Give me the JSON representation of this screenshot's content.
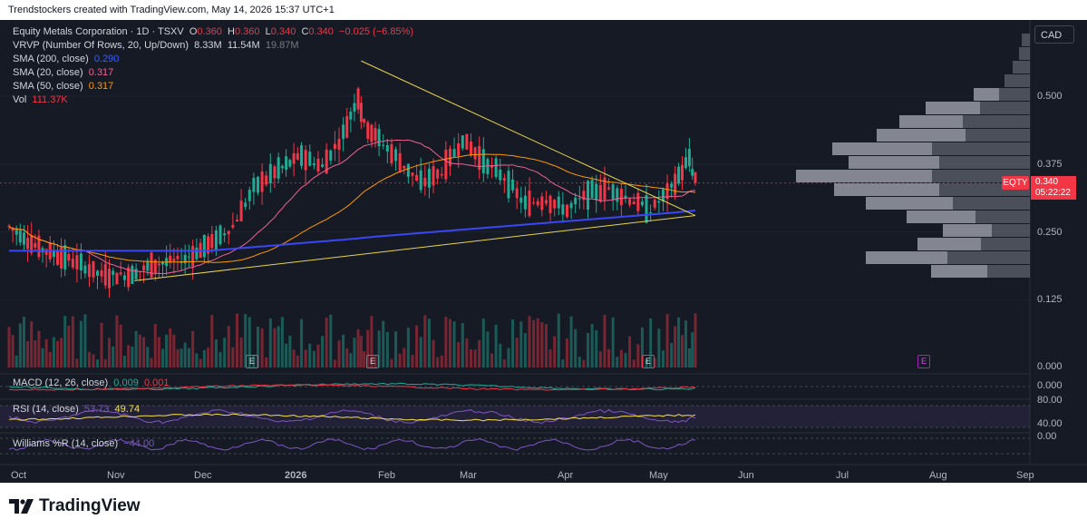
{
  "header": {
    "text": "Trendstockers created with TradingView.com, May 14, 2026 15:37 UTC+1"
  },
  "legend": {
    "symbol": "Equity Metals Corporation · 1D · TSXV",
    "ohlc": {
      "o_label": "O",
      "o": "0.360",
      "h_label": "H",
      "h": "0.360",
      "l_label": "L",
      "l": "0.340",
      "c_label": "C",
      "c": "0.340",
      "change": "−0.025 (−6.85%)"
    },
    "vrvp": {
      "label": "VRVP (Number Of Rows, 20, Up/Down)",
      "v1": "8.33M",
      "v2": "11.54M",
      "v3": "19.87M"
    },
    "sma200": {
      "label": "SMA (200, close)",
      "value": "0.290"
    },
    "sma20": {
      "label": "SMA (20, close)",
      "value": "0.317"
    },
    "sma50": {
      "label": "SMA (50, close)",
      "value": "0.317"
    },
    "vol": {
      "label": "Vol",
      "value": "111.37K"
    }
  },
  "currency": "CAD",
  "price_tag": {
    "ticker": "EQTY",
    "price": "0.340",
    "countdown": "05:22:22"
  },
  "earnings_marker": "E",
  "macd": {
    "label": "MACD (12, 26, close)",
    "v1": "0.009",
    "v2": "0.001"
  },
  "rsi": {
    "label": "RSI (14, close)",
    "v1": "53.73",
    "v2": "49.74"
  },
  "williams": {
    "label": "Williams %R (14, close)",
    "value": "−44.00"
  },
  "footer": {
    "brand": "TradingView"
  },
  "colors": {
    "background": "#161a25",
    "up": "#22ab94",
    "down": "#f23645",
    "sma200": "#3b46f5",
    "sma20": "#f06292",
    "sma50": "#ff9800",
    "trendline": "#e8d44d",
    "rsi": "#7e57c2"
  },
  "chart_data": {
    "type": "candlestick",
    "title": "Equity Metals Corporation · 1D · TSXV",
    "x_axis": {
      "tick_labels": [
        "Oct",
        "Nov",
        "Dec",
        "2026",
        "Feb",
        "Mar",
        "Apr",
        "May",
        "Jun",
        "Jul",
        "Aug",
        "Sep"
      ]
    },
    "y_axis": {
      "tick_labels": [
        "0.500",
        "0.375",
        "0.250",
        "0.125",
        "0.000"
      ],
      "range": [
        0.0,
        0.56
      ]
    },
    "last_price": 0.34,
    "close_series": {
      "dates": [
        "2025-09-26",
        "2025-10-06",
        "2025-10-16",
        "2025-10-27",
        "2025-11-05",
        "2025-11-14",
        "2025-11-24",
        "2025-12-03",
        "2025-12-10",
        "2025-12-17",
        "2025-12-24",
        "2026-01-02",
        "2026-01-09",
        "2026-01-16",
        "2026-01-21",
        "2026-01-23",
        "2026-01-28",
        "2026-02-04",
        "2026-02-11",
        "2026-02-18",
        "2026-02-25",
        "2026-03-04",
        "2026-03-11",
        "2026-03-18",
        "2026-03-25",
        "2026-04-01",
        "2026-04-08",
        "2026-04-15",
        "2026-04-22",
        "2026-04-29",
        "2026-05-06",
        "2026-05-12",
        "2026-05-14"
      ],
      "close": [
        0.26,
        0.22,
        0.2,
        0.17,
        0.17,
        0.19,
        0.2,
        0.23,
        0.26,
        0.33,
        0.36,
        0.39,
        0.37,
        0.43,
        0.5,
        0.45,
        0.42,
        0.38,
        0.34,
        0.36,
        0.42,
        0.38,
        0.35,
        0.3,
        0.31,
        0.29,
        0.32,
        0.33,
        0.31,
        0.29,
        0.33,
        0.385,
        0.34
      ]
    },
    "volume_label": "Vol",
    "volume_last": "111.37K",
    "sma": [
      {
        "name": "SMA (200, close)",
        "last": 0.29
      },
      {
        "name": "SMA (20, close)",
        "last": 0.317
      },
      {
        "name": "SMA (50, close)",
        "last": 0.317
      }
    ],
    "indicators": [
      {
        "name": "MACD (12, 26, close)",
        "values": [
          0.009,
          0.001
        ],
        "axis_label": "0.000"
      },
      {
        "name": "RSI (14, close)",
        "values": [
          53.73,
          49.74
        ],
        "axis_labels": [
          "80.00",
          "40.00"
        ]
      },
      {
        "name": "Williams %R (14, close)",
        "value": -44.0,
        "axis_label": "0.00"
      }
    ],
    "volume_profile": {
      "rows": 20,
      "mode": "Up/Down",
      "value_area": "8.33M",
      "up": "11.54M",
      "total": "19.87M"
    }
  }
}
